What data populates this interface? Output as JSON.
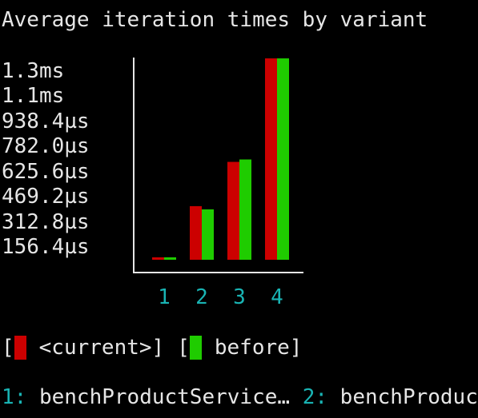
{
  "colors": {
    "current": "#cc0000",
    "before": "#1fcc00",
    "accent": "#19b4b4",
    "text": "#e6e6e6"
  },
  "chart_data": {
    "type": "bar",
    "title": "Average iteration times by variant",
    "categories": [
      "1",
      "2",
      "3",
      "4"
    ],
    "y_unit": "µs",
    "ylim": [
      0,
      1251.2
    ],
    "y_tick_values": [
      156.4,
      312.8,
      469.2,
      625.6,
      782.0,
      938.4,
      1100,
      1300
    ],
    "y_tick_labels": [
      "156.4µs",
      "312.8µs",
      "469.2µs",
      "625.6µs",
      "782.0µs",
      "938.4µs",
      "1.1ms",
      "1.3ms"
    ],
    "series": [
      {
        "name": "<current>",
        "values": [
          15,
          333,
          608,
          1251
        ]
      },
      {
        "name": "before",
        "values": [
          15,
          313,
          623,
          1251
        ]
      }
    ],
    "legend_position": "bottom-left",
    "grid": false
  },
  "legend": {
    "open_bracket": "[",
    "current_label": "<current>]",
    "open_bracket_2": "[",
    "before_label": "before]"
  },
  "footer": {
    "n1": "1:",
    "name1": "benchProductService…",
    "n2": "2:",
    "name2": "benchProduc"
  }
}
